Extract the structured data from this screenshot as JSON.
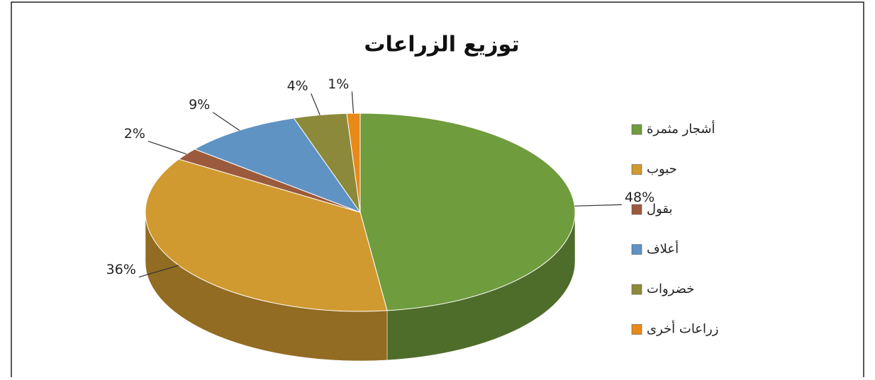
{
  "chart_data": {
    "type": "pie",
    "title": "توزيع الزراعات",
    "categories": [
      "أشجار مثمرة",
      "حبوب",
      "بقول",
      "أعلاف",
      "خضروات",
      "زراعات أخرى"
    ],
    "values": [
      48,
      36,
      2,
      9,
      4,
      1
    ],
    "value_labels": [
      "48%",
      "36%",
      "2%",
      "9%",
      "4%",
      "1%"
    ],
    "colors": [
      "#6f9c3d",
      "#d09a30",
      "#9c5a3c",
      "#5f93c4",
      "#8c8a3a",
      "#e8891a"
    ],
    "legend": "right"
  }
}
